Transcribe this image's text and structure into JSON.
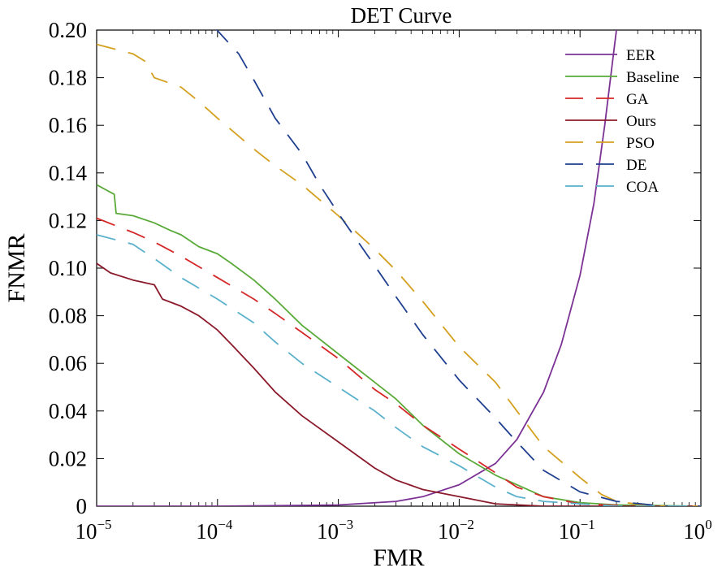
{
  "chart_data": {
    "type": "line",
    "title": "DET Curve",
    "xlabel": "FMR",
    "ylabel": "FNMR",
    "x_scale": "log",
    "xlim": [
      1e-05,
      1
    ],
    "ylim": [
      0,
      0.2
    ],
    "x_ticks": [
      {
        "value": 1e-05,
        "base": "10",
        "exp": "−5"
      },
      {
        "value": 0.0001,
        "base": "10",
        "exp": "−4"
      },
      {
        "value": 0.001,
        "base": "10",
        "exp": "−3"
      },
      {
        "value": 0.01,
        "base": "10",
        "exp": "−2"
      },
      {
        "value": 0.1,
        "base": "10",
        "exp": "−1"
      },
      {
        "value": 1,
        "base": "10",
        "exp": "0"
      }
    ],
    "y_ticks": [
      {
        "value": 0,
        "label": "0"
      },
      {
        "value": 0.02,
        "label": "0.02"
      },
      {
        "value": 0.04,
        "label": "0.04"
      },
      {
        "value": 0.06,
        "label": "0.06"
      },
      {
        "value": 0.08,
        "label": "0.08"
      },
      {
        "value": 0.1,
        "label": "0.10"
      },
      {
        "value": 0.12,
        "label": "0.12"
      },
      {
        "value": 0.14,
        "label": "0.14"
      },
      {
        "value": 0.16,
        "label": "0.16"
      },
      {
        "value": 0.18,
        "label": "0.18"
      },
      {
        "value": 0.2,
        "label": "0.20"
      }
    ],
    "grid": false,
    "legend_position": "top-right",
    "series": [
      {
        "name": "EER",
        "color": "#7b3294",
        "dash": "solid",
        "points": [
          [
            1e-05,
            0
          ],
          [
            0.0001,
            0
          ],
          [
            0.001,
            0.0005
          ],
          [
            0.003,
            0.002
          ],
          [
            0.005,
            0.004
          ],
          [
            0.01,
            0.009
          ],
          [
            0.02,
            0.018
          ],
          [
            0.03,
            0.028
          ],
          [
            0.05,
            0.048
          ],
          [
            0.07,
            0.068
          ],
          [
            0.1,
            0.097
          ],
          [
            0.13,
            0.127
          ],
          [
            0.16,
            0.16
          ],
          [
            0.2,
            0.2
          ]
        ]
      },
      {
        "name": "Baseline",
        "color": "#5aaa3a",
        "dash": "solid",
        "points": [
          [
            1e-05,
            0.135
          ],
          [
            1.4e-05,
            0.131
          ],
          [
            1.45e-05,
            0.123
          ],
          [
            2e-05,
            0.122
          ],
          [
            3e-05,
            0.119
          ],
          [
            4e-05,
            0.116
          ],
          [
            5e-05,
            0.114
          ],
          [
            7e-05,
            0.109
          ],
          [
            0.0001,
            0.106
          ],
          [
            0.00013,
            0.102
          ],
          [
            0.0002,
            0.095
          ],
          [
            0.0003,
            0.087
          ],
          [
            0.0005,
            0.076
          ],
          [
            0.001,
            0.064
          ],
          [
            0.002,
            0.052
          ],
          [
            0.003,
            0.045
          ],
          [
            0.005,
            0.034
          ],
          [
            0.01,
            0.022
          ],
          [
            0.02,
            0.013
          ],
          [
            0.03,
            0.009
          ],
          [
            0.05,
            0.004
          ],
          [
            0.1,
            0.0015
          ],
          [
            0.2,
            0.0005
          ],
          [
            1,
            0
          ]
        ]
      },
      {
        "name": "GA",
        "color": "#d62728",
        "dash": "24,16",
        "points": [
          [
            1e-05,
            0.121
          ],
          [
            2e-05,
            0.115
          ],
          [
            3e-05,
            0.111
          ],
          [
            5e-05,
            0.105
          ],
          [
            0.0001,
            0.096
          ],
          [
            0.0002,
            0.087
          ],
          [
            0.0003,
            0.081
          ],
          [
            0.0005,
            0.073
          ],
          [
            0.001,
            0.062
          ],
          [
            0.002,
            0.049
          ],
          [
            0.003,
            0.043
          ],
          [
            0.005,
            0.034
          ],
          [
            0.01,
            0.024
          ],
          [
            0.02,
            0.014
          ],
          [
            0.03,
            0.008
          ],
          [
            0.05,
            0.004
          ],
          [
            0.1,
            0.001
          ],
          [
            0.3,
            0
          ],
          [
            1,
            0
          ]
        ]
      },
      {
        "name": "Ours",
        "color": "#8b1a2b",
        "dash": "solid",
        "points": [
          [
            1e-05,
            0.102
          ],
          [
            1.3e-05,
            0.098
          ],
          [
            2e-05,
            0.095
          ],
          [
            3e-05,
            0.093
          ],
          [
            3.5e-05,
            0.087
          ],
          [
            5e-05,
            0.084
          ],
          [
            7e-05,
            0.08
          ],
          [
            0.0001,
            0.074
          ],
          [
            0.00013,
            0.068
          ],
          [
            0.0002,
            0.058
          ],
          [
            0.0003,
            0.048
          ],
          [
            0.0005,
            0.038
          ],
          [
            0.001,
            0.027
          ],
          [
            0.002,
            0.016
          ],
          [
            0.003,
            0.011
          ],
          [
            0.005,
            0.007
          ],
          [
            0.01,
            0.004
          ],
          [
            0.02,
            0.001
          ],
          [
            0.05,
            0
          ],
          [
            1,
            0
          ]
        ]
      },
      {
        "name": "PSO",
        "color": "#d4a020",
        "dash": "24,16",
        "points": [
          [
            1e-05,
            0.194
          ],
          [
            2e-05,
            0.19
          ],
          [
            2.5e-05,
            0.187
          ],
          [
            3e-05,
            0.18
          ],
          [
            5e-05,
            0.176
          ],
          [
            7e-05,
            0.17
          ],
          [
            0.0001,
            0.163
          ],
          [
            0.0002,
            0.15
          ],
          [
            0.0003,
            0.143
          ],
          [
            0.0005,
            0.135
          ],
          [
            0.001,
            0.122
          ],
          [
            0.002,
            0.108
          ],
          [
            0.003,
            0.099
          ],
          [
            0.005,
            0.086
          ],
          [
            0.01,
            0.067
          ],
          [
            0.02,
            0.052
          ],
          [
            0.03,
            0.04
          ],
          [
            0.05,
            0.025
          ],
          [
            0.1,
            0.012
          ],
          [
            0.15,
            0.005
          ],
          [
            0.2,
            0.002
          ],
          [
            0.4,
            0
          ],
          [
            1,
            0
          ]
        ]
      },
      {
        "name": "DE",
        "color": "#1f3f8f",
        "dash": "24,16",
        "points": [
          [
            9.5e-05,
            0.201
          ],
          [
            0.00015,
            0.19
          ],
          [
            0.0002,
            0.179
          ],
          [
            0.0003,
            0.163
          ],
          [
            0.0005,
            0.148
          ],
          [
            0.0007,
            0.135
          ],
          [
            0.001,
            0.123
          ],
          [
            0.002,
            0.101
          ],
          [
            0.003,
            0.088
          ],
          [
            0.005,
            0.072
          ],
          [
            0.01,
            0.053
          ],
          [
            0.02,
            0.037
          ],
          [
            0.03,
            0.027
          ],
          [
            0.05,
            0.015
          ],
          [
            0.1,
            0.006
          ],
          [
            0.2,
            0.002
          ],
          [
            0.5,
            0
          ],
          [
            1,
            0
          ]
        ]
      },
      {
        "name": "COA",
        "color": "#5bb1cc",
        "dash": "24,16",
        "points": [
          [
            1e-05,
            0.114
          ],
          [
            2e-05,
            0.11
          ],
          [
            3e-05,
            0.104
          ],
          [
            5e-05,
            0.096
          ],
          [
            0.0001,
            0.087
          ],
          [
            0.0002,
            0.077
          ],
          [
            0.0003,
            0.069
          ],
          [
            0.0005,
            0.06
          ],
          [
            0.001,
            0.05
          ],
          [
            0.002,
            0.04
          ],
          [
            0.003,
            0.033
          ],
          [
            0.005,
            0.025
          ],
          [
            0.01,
            0.017
          ],
          [
            0.02,
            0.008
          ],
          [
            0.03,
            0.004
          ],
          [
            0.05,
            0.002
          ],
          [
            0.1,
            0.001
          ],
          [
            0.2,
            0
          ],
          [
            1,
            0
          ]
        ]
      }
    ]
  }
}
